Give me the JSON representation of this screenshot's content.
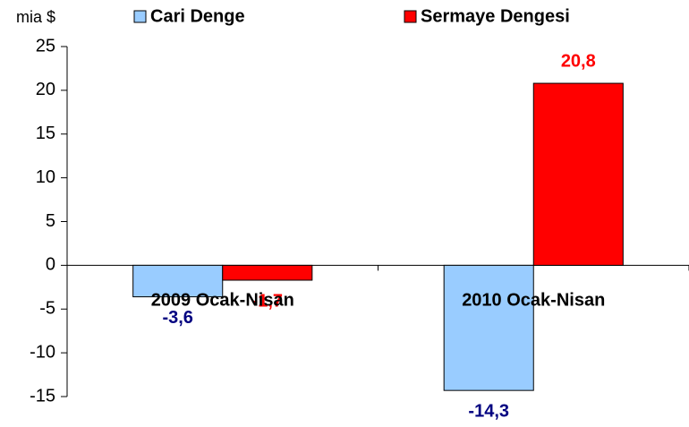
{
  "chart_data": {
    "type": "bar",
    "y_label": "mia $",
    "categories": [
      "2009 Ocak-Nisan",
      "2010 Ocak-Nisan"
    ],
    "series": [
      {
        "name": "Cari Denge",
        "color": "#99ccff",
        "label_color": "#000080",
        "values": [
          -3.6,
          -14.3
        ],
        "value_labels": [
          "-3,6",
          "-14,3"
        ]
      },
      {
        "name": "Sermaye Dengesi",
        "color": "#ff0000",
        "label_color": "#ff0000",
        "values": [
          -1.7,
          20.8
        ],
        "value_labels": [
          "-1,7",
          "20,8"
        ]
      }
    ],
    "ylim": [
      -15,
      25
    ],
    "yticks": [
      -15,
      -10,
      -5,
      0,
      5,
      10,
      15,
      20,
      25
    ],
    "legend": "top"
  }
}
